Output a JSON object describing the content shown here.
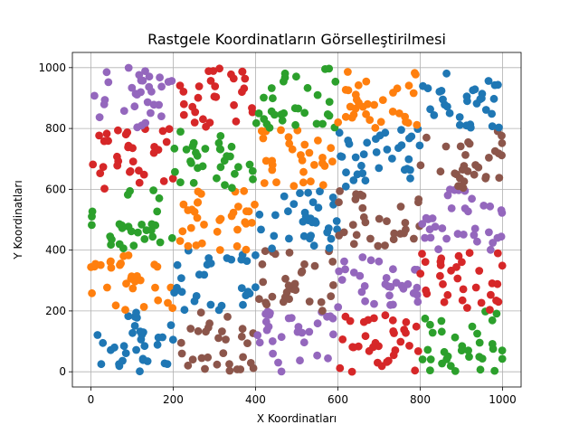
{
  "chart_data": {
    "type": "scatter",
    "title": "Rastgele Koordinatların Görselleştirilmesi",
    "xlabel": "X Koordinatları",
    "ylabel": "Y Koordinatları",
    "xlim": [
      -45,
      1045
    ],
    "ylim": [
      -50,
      1050
    ],
    "xticks": [
      0,
      200,
      400,
      600,
      800,
      1000
    ],
    "yticks": [
      0,
      200,
      400,
      600,
      800,
      1000
    ],
    "grid": true,
    "colors": [
      "#1f77b4",
      "#ff7f0e",
      "#2ca02c",
      "#d62728",
      "#9467bd",
      "#8c564b"
    ],
    "cells": [
      {
        "row": 0,
        "col": 0,
        "color": 0,
        "points": 34
      },
      {
        "row": 0,
        "col": 1,
        "color": 5,
        "points": 30
      },
      {
        "row": 0,
        "col": 2,
        "color": 4,
        "points": 30
      },
      {
        "row": 0,
        "col": 3,
        "color": 3,
        "points": 34
      },
      {
        "row": 0,
        "col": 4,
        "color": 2,
        "points": 34
      },
      {
        "row": 1,
        "col": 0,
        "color": 1,
        "points": 30
      },
      {
        "row": 1,
        "col": 1,
        "color": 0,
        "points": 30
      },
      {
        "row": 1,
        "col": 2,
        "color": 5,
        "points": 30
      },
      {
        "row": 1,
        "col": 3,
        "color": 4,
        "points": 32
      },
      {
        "row": 1,
        "col": 4,
        "color": 3,
        "points": 32
      },
      {
        "row": 2,
        "col": 0,
        "color": 2,
        "points": 30
      },
      {
        "row": 2,
        "col": 1,
        "color": 1,
        "points": 34
      },
      {
        "row": 2,
        "col": 2,
        "color": 0,
        "points": 34
      },
      {
        "row": 2,
        "col": 3,
        "color": 5,
        "points": 30
      },
      {
        "row": 2,
        "col": 4,
        "color": 4,
        "points": 34
      },
      {
        "row": 3,
        "col": 0,
        "color": 3,
        "points": 32
      },
      {
        "row": 3,
        "col": 1,
        "color": 2,
        "points": 32
      },
      {
        "row": 3,
        "col": 2,
        "color": 1,
        "points": 30
      },
      {
        "row": 3,
        "col": 3,
        "color": 0,
        "points": 34
      },
      {
        "row": 3,
        "col": 4,
        "color": 5,
        "points": 30
      },
      {
        "row": 4,
        "col": 0,
        "color": 4,
        "points": 32
      },
      {
        "row": 4,
        "col": 1,
        "color": 3,
        "points": 30
      },
      {
        "row": 4,
        "col": 2,
        "color": 2,
        "points": 32
      },
      {
        "row": 4,
        "col": 3,
        "color": 1,
        "points": 34
      },
      {
        "row": 4,
        "col": 4,
        "color": 0,
        "points": 32
      }
    ]
  }
}
